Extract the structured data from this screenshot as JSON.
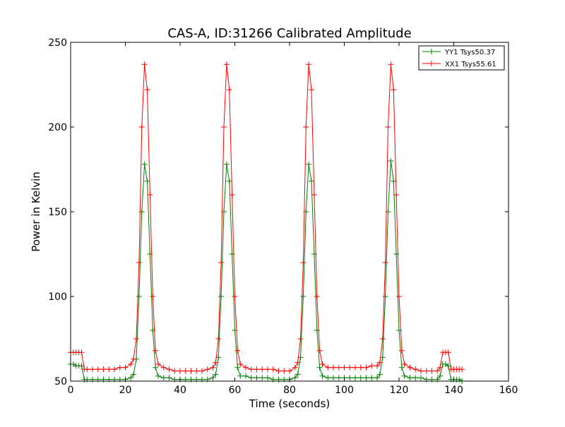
{
  "chart_data": {
    "type": "line",
    "title": "CAS-A, ID:31266 Calibrated Amplitude",
    "xlabel": "Time (seconds)",
    "ylabel": "Power in Kelvin",
    "xlim": [
      0,
      160
    ],
    "ylim": [
      50,
      250
    ],
    "x_ticks": [
      0,
      20,
      40,
      60,
      80,
      100,
      120,
      140,
      160
    ],
    "y_ticks": [
      50,
      100,
      150,
      200,
      250
    ],
    "grid": false,
    "legend_position": "top-right",
    "marker": "+",
    "series": [
      {
        "name": "YY1 Tsys50.37",
        "color": "#008000",
        "x": [
          0,
          1,
          2,
          3,
          4,
          5,
          6,
          8,
          10,
          12,
          14,
          16,
          18,
          20,
          22,
          23,
          24,
          25,
          26,
          27,
          28,
          29,
          30,
          31,
          32,
          34,
          36,
          38,
          40,
          42,
          44,
          46,
          48,
          50,
          52,
          53,
          54,
          55,
          56,
          57,
          58,
          59,
          60,
          61,
          62,
          64,
          66,
          68,
          70,
          72,
          74,
          76,
          78,
          80,
          82,
          83,
          84,
          85,
          86,
          87,
          88,
          89,
          90,
          91,
          92,
          94,
          96,
          98,
          100,
          102,
          104,
          106,
          108,
          110,
          112,
          113,
          114,
          115,
          116,
          117,
          118,
          119,
          120,
          121,
          122,
          124,
          126,
          128,
          130,
          132,
          134,
          135,
          136,
          137,
          138,
          139,
          140,
          141,
          142,
          143
        ],
        "y": [
          60,
          60,
          59,
          59,
          59,
          51,
          51,
          51,
          51,
          51,
          51,
          51,
          51,
          51,
          52,
          54,
          63,
          100,
          150,
          178,
          168,
          125,
          80,
          58,
          53,
          52,
          52,
          51,
          51,
          51,
          51,
          51,
          51,
          51,
          52,
          54,
          64,
          100,
          150,
          178,
          168,
          125,
          80,
          58,
          53,
          53,
          52,
          52,
          52,
          52,
          51,
          51,
          51,
          51,
          52,
          54,
          64,
          100,
          150,
          178,
          168,
          125,
          80,
          58,
          53,
          52,
          52,
          52,
          52,
          52,
          52,
          52,
          52,
          52,
          52,
          54,
          64,
          100,
          150,
          180,
          168,
          125,
          80,
          58,
          53,
          52,
          52,
          52,
          51,
          51,
          51,
          53,
          60,
          60,
          59,
          51,
          51,
          51,
          51,
          50
        ]
      },
      {
        "name": "XX1 Tsys55.61",
        "color": "#ff0000",
        "x": [
          0,
          1,
          2,
          3,
          4,
          5,
          6,
          8,
          10,
          12,
          14,
          16,
          18,
          20,
          22,
          23,
          24,
          25,
          26,
          27,
          28,
          29,
          30,
          31,
          32,
          34,
          36,
          38,
          40,
          42,
          44,
          46,
          48,
          50,
          52,
          53,
          54,
          55,
          56,
          57,
          58,
          59,
          60,
          61,
          62,
          64,
          66,
          68,
          70,
          72,
          74,
          76,
          78,
          80,
          82,
          83,
          84,
          85,
          86,
          87,
          88,
          89,
          90,
          91,
          92,
          94,
          96,
          98,
          100,
          102,
          104,
          106,
          108,
          110,
          112,
          113,
          114,
          115,
          116,
          117,
          118,
          119,
          120,
          121,
          122,
          124,
          126,
          128,
          130,
          132,
          134,
          135,
          136,
          137,
          138,
          139,
          140,
          141,
          142,
          143
        ],
        "y": [
          67,
          67,
          67,
          67,
          67,
          57,
          57,
          57,
          57,
          57,
          57,
          57,
          58,
          58,
          60,
          63,
          75,
          120,
          200,
          237,
          222,
          160,
          100,
          68,
          60,
          58,
          57,
          56,
          56,
          56,
          56,
          56,
          56,
          57,
          58,
          61,
          75,
          120,
          200,
          237,
          222,
          160,
          100,
          68,
          60,
          58,
          57,
          57,
          57,
          57,
          57,
          56,
          56,
          56,
          58,
          61,
          75,
          120,
          200,
          237,
          222,
          160,
          100,
          68,
          60,
          58,
          58,
          58,
          58,
          58,
          58,
          58,
          58,
          59,
          59,
          61,
          75,
          120,
          200,
          237,
          222,
          160,
          100,
          68,
          60,
          58,
          57,
          56,
          56,
          56,
          56,
          58,
          67,
          67,
          67,
          57,
          57,
          57,
          57,
          57
        ]
      }
    ]
  }
}
